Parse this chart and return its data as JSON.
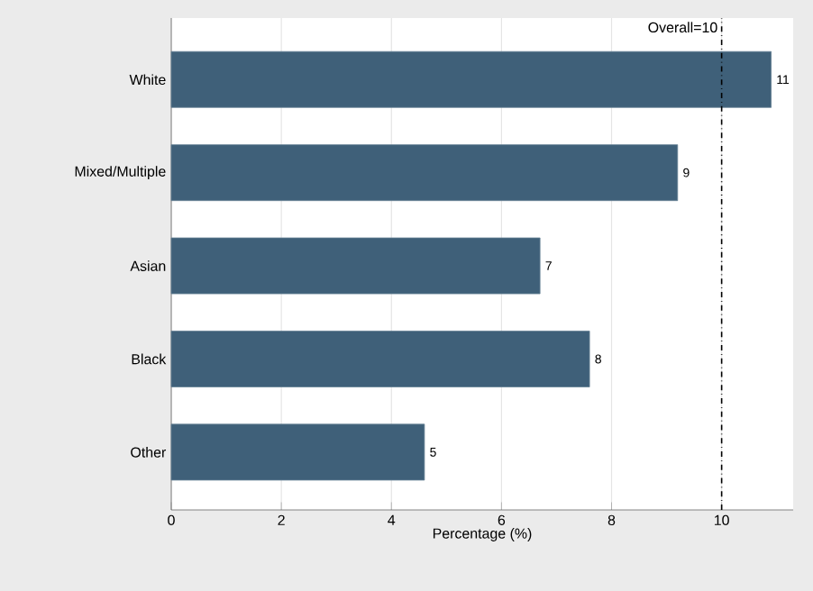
{
  "chart_data": {
    "type": "bar",
    "orientation": "horizontal",
    "categories": [
      "White",
      "Mixed/Multiple",
      "Asian",
      "Black",
      "Other"
    ],
    "values": [
      10.9,
      9.2,
      6.7,
      7.6,
      4.6
    ],
    "value_labels": [
      "11",
      "9",
      "7",
      "8",
      "5"
    ],
    "color": "#3f6079",
    "xlabel": "Percentage (%)",
    "xlim": [
      0,
      11.3
    ],
    "xticks": [
      0,
      2,
      4,
      6,
      8,
      10
    ],
    "grid": "x",
    "ref_lines": [
      {
        "axis": "x",
        "value": 10,
        "label": "Overall=10",
        "line_style": "dashdot",
        "color": "#000000"
      }
    ]
  }
}
